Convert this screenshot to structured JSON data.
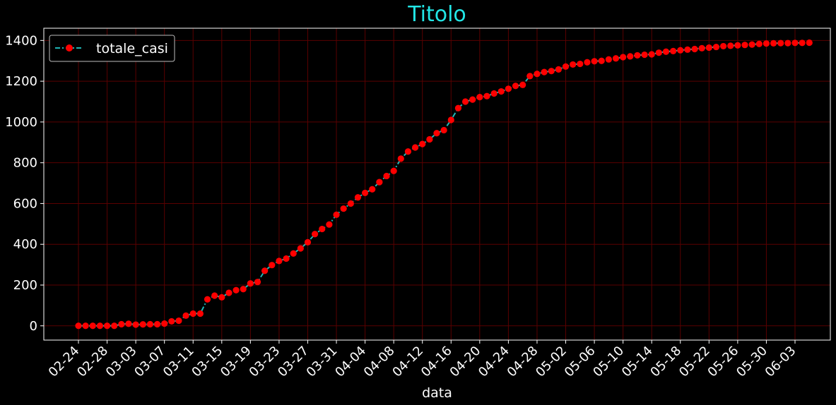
{
  "chart_data": {
    "type": "line",
    "title": "Titolo",
    "xlabel": "data",
    "ylabel": "",
    "ylim": [
      -70,
      1460
    ],
    "yticks": [
      0,
      200,
      400,
      600,
      800,
      1000,
      1200,
      1400
    ],
    "xtick_labels": [
      "02-24",
      "02-28",
      "03-03",
      "03-07",
      "03-11",
      "03-15",
      "03-19",
      "03-23",
      "03-27",
      "03-31",
      "04-04",
      "04-08",
      "04-12",
      "04-16",
      "04-20",
      "04-24",
      "04-28",
      "05-02",
      "05-06",
      "05-10",
      "05-14",
      "05-18",
      "05-22",
      "05-26",
      "05-30",
      "06-03"
    ],
    "grid": true,
    "legend_position": "top-left",
    "colors": {
      "background": "#000000",
      "grid": "#5a0000",
      "line": "#1fb5b5",
      "marker": "#ff0000",
      "title": "#22e6e6",
      "text": "#ffffff"
    },
    "series": [
      {
        "name": "totale_casi",
        "values": [
          0,
          0,
          0,
          0,
          0,
          0,
          8,
          10,
          6,
          7,
          8,
          8,
          11,
          22,
          25,
          50,
          60,
          60,
          130,
          148,
          140,
          162,
          175,
          180,
          208,
          215,
          270,
          298,
          318,
          330,
          355,
          380,
          410,
          450,
          475,
          497,
          545,
          575,
          600,
          630,
          652,
          670,
          705,
          735,
          760,
          820,
          855,
          875,
          892,
          915,
          945,
          960,
          1010,
          1068,
          1100,
          1110,
          1122,
          1127,
          1140,
          1150,
          1163,
          1177,
          1182,
          1225,
          1236,
          1245,
          1250,
          1258,
          1272,
          1282,
          1285,
          1293,
          1298,
          1300,
          1307,
          1312,
          1318,
          1322,
          1327,
          1330,
          1332,
          1340,
          1345,
          1348,
          1352,
          1355,
          1358,
          1362,
          1365,
          1368,
          1372,
          1374,
          1376,
          1378,
          1380,
          1383,
          1385,
          1386,
          1387,
          1387,
          1388,
          1388,
          1389
        ]
      }
    ]
  }
}
